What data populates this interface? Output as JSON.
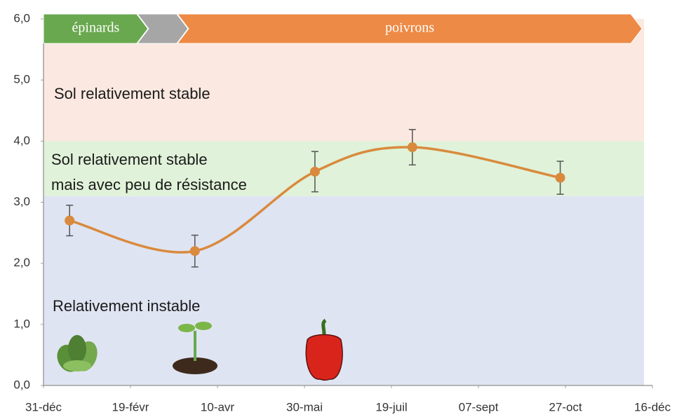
{
  "chart_data": {
    "type": "line",
    "x": [
      15,
      87,
      156,
      212,
      297
    ],
    "series": [
      {
        "color": "#d98a3d",
        "values": [
          2.7,
          2.2,
          3.5,
          3.9,
          3.4
        ],
        "error": [
          0.25,
          0.26,
          0.33,
          0.29,
          0.27
        ]
      }
    ],
    "xlim": [
      0,
      350
    ],
    "xticks": [
      {
        "value": 0,
        "label": "31-déc"
      },
      {
        "value": 50,
        "label": "19-févr"
      },
      {
        "value": 100,
        "label": "10-avr"
      },
      {
        "value": 150,
        "label": "30-mai"
      },
      {
        "value": 200,
        "label": "19-juil"
      },
      {
        "value": 250,
        "label": "07-sept"
      },
      {
        "value": 300,
        "label": "27-oct"
      },
      {
        "value": 350,
        "label": "16-déc"
      }
    ],
    "ylim": [
      0,
      6
    ],
    "yticks": [
      {
        "value": 0,
        "label": "0,0"
      },
      {
        "value": 1,
        "label": "1,0"
      },
      {
        "value": 2,
        "label": "2,0"
      },
      {
        "value": 3,
        "label": "3,0"
      },
      {
        "value": 4,
        "label": "4,0"
      },
      {
        "value": 5,
        "label": "5,0"
      },
      {
        "value": 6,
        "label": "6,0"
      }
    ],
    "bands": [
      {
        "from": 0,
        "to": 3.1,
        "color": "#dfe4f2",
        "label": [
          "Relativement instable"
        ]
      },
      {
        "from": 3.1,
        "to": 4.0,
        "color": "#e0f2d9",
        "label": [
          "Sol relativement stable",
          "mais avec peu de résistance"
        ]
      },
      {
        "from": 4.0,
        "to": 6.0,
        "color": "#fbe8e0",
        "label": [
          "Sol relativement stable"
        ]
      }
    ],
    "phases": [
      {
        "name": "épinards",
        "start": 0,
        "end": 60,
        "color": "#6aa84f"
      },
      {
        "start": 54,
        "end": 83,
        "color": "#a6a6a6"
      },
      {
        "name": "poivrons",
        "start": 77,
        "end": 344,
        "color": "#ed8a45"
      }
    ]
  }
}
